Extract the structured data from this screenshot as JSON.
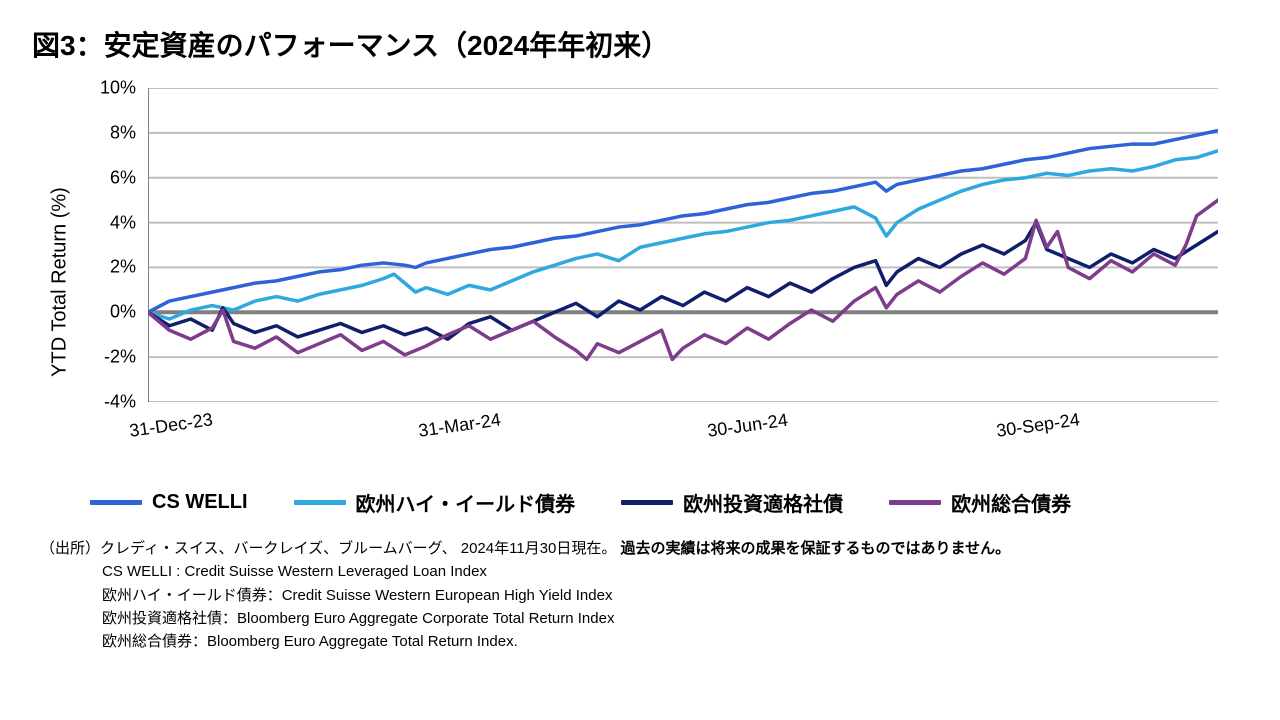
{
  "title": "図3：安定資産のパフォーマンス（2024年年初来）",
  "chart": {
    "type": "line",
    "y_axis_label": "YTD Total Return (%)",
    "ylim": [
      -4,
      10
    ],
    "ytick_step": 2,
    "y_ticks": [
      "10%",
      "8%",
      "6%",
      "4%",
      "2%",
      "0%",
      "-2%",
      "-4%"
    ],
    "y_tick_values": [
      10,
      8,
      6,
      4,
      2,
      0,
      -2,
      -4
    ],
    "x_ticks": [
      "31-Dec-23",
      "31-Mar-24",
      "30-Jun-24",
      "30-Sep-24"
    ],
    "x_positions_pct": [
      0,
      27,
      54,
      81
    ],
    "background_color": "#ffffff",
    "grid_color": "#bfbfbf",
    "axis_color": "#7f7f7f",
    "zero_line_color": "#808080",
    "label_fontsize": 18,
    "axis_label_fontsize": 20,
    "line_width": 3.5,
    "series": [
      {
        "name": "CS WELLI",
        "label": "CS WELLI",
        "color": "#2e62d9",
        "data": [
          [
            0,
            0.0
          ],
          [
            2,
            0.5
          ],
          [
            4,
            0.7
          ],
          [
            6,
            0.9
          ],
          [
            8,
            1.1
          ],
          [
            10,
            1.3
          ],
          [
            12,
            1.4
          ],
          [
            14,
            1.6
          ],
          [
            16,
            1.8
          ],
          [
            18,
            1.9
          ],
          [
            20,
            2.1
          ],
          [
            22,
            2.2
          ],
          [
            24,
            2.1
          ],
          [
            25,
            2.0
          ],
          [
            26,
            2.2
          ],
          [
            28,
            2.4
          ],
          [
            30,
            2.6
          ],
          [
            32,
            2.8
          ],
          [
            34,
            2.9
          ],
          [
            36,
            3.1
          ],
          [
            38,
            3.3
          ],
          [
            40,
            3.4
          ],
          [
            42,
            3.6
          ],
          [
            44,
            3.8
          ],
          [
            46,
            3.9
          ],
          [
            48,
            4.1
          ],
          [
            50,
            4.3
          ],
          [
            52,
            4.4
          ],
          [
            54,
            4.6
          ],
          [
            56,
            4.8
          ],
          [
            58,
            4.9
          ],
          [
            60,
            5.1
          ],
          [
            62,
            5.3
          ],
          [
            64,
            5.4
          ],
          [
            66,
            5.6
          ],
          [
            68,
            5.8
          ],
          [
            69,
            5.4
          ],
          [
            70,
            5.7
          ],
          [
            72,
            5.9
          ],
          [
            74,
            6.1
          ],
          [
            76,
            6.3
          ],
          [
            78,
            6.4
          ],
          [
            80,
            6.6
          ],
          [
            82,
            6.8
          ],
          [
            84,
            6.9
          ],
          [
            86,
            7.1
          ],
          [
            88,
            7.3
          ],
          [
            90,
            7.4
          ],
          [
            92,
            7.5
          ],
          [
            94,
            7.5
          ],
          [
            96,
            7.7
          ],
          [
            98,
            7.9
          ],
          [
            100,
            8.1
          ]
        ]
      },
      {
        "name": "欧州ハイ・イールド債券",
        "label": "欧州ハイ・イールド債券",
        "color": "#2fa8e0",
        "data": [
          [
            0,
            0.0
          ],
          [
            2,
            -0.3
          ],
          [
            4,
            0.1
          ],
          [
            6,
            0.3
          ],
          [
            8,
            0.1
          ],
          [
            10,
            0.5
          ],
          [
            12,
            0.7
          ],
          [
            14,
            0.5
          ],
          [
            16,
            0.8
          ],
          [
            18,
            1.0
          ],
          [
            20,
            1.2
          ],
          [
            22,
            1.5
          ],
          [
            23,
            1.7
          ],
          [
            24,
            1.3
          ],
          [
            25,
            0.9
          ],
          [
            26,
            1.1
          ],
          [
            28,
            0.8
          ],
          [
            30,
            1.2
          ],
          [
            32,
            1.0
          ],
          [
            34,
            1.4
          ],
          [
            36,
            1.8
          ],
          [
            38,
            2.1
          ],
          [
            40,
            2.4
          ],
          [
            42,
            2.6
          ],
          [
            44,
            2.3
          ],
          [
            46,
            2.9
          ],
          [
            48,
            3.1
          ],
          [
            50,
            3.3
          ],
          [
            52,
            3.5
          ],
          [
            54,
            3.6
          ],
          [
            56,
            3.8
          ],
          [
            58,
            4.0
          ],
          [
            60,
            4.1
          ],
          [
            62,
            4.3
          ],
          [
            64,
            4.5
          ],
          [
            66,
            4.7
          ],
          [
            68,
            4.2
          ],
          [
            69,
            3.4
          ],
          [
            70,
            4.0
          ],
          [
            72,
            4.6
          ],
          [
            74,
            5.0
          ],
          [
            76,
            5.4
          ],
          [
            78,
            5.7
          ],
          [
            80,
            5.9
          ],
          [
            82,
            6.0
          ],
          [
            84,
            6.2
          ],
          [
            86,
            6.1
          ],
          [
            88,
            6.3
          ],
          [
            90,
            6.4
          ],
          [
            92,
            6.3
          ],
          [
            94,
            6.5
          ],
          [
            96,
            6.8
          ],
          [
            98,
            6.9
          ],
          [
            100,
            7.2
          ]
        ]
      },
      {
        "name": "欧州投資適格社債",
        "label": "欧州投資適格社債",
        "color": "#0f1f6b",
        "data": [
          [
            0,
            0.0
          ],
          [
            2,
            -0.6
          ],
          [
            4,
            -0.3
          ],
          [
            6,
            -0.8
          ],
          [
            7,
            0.2
          ],
          [
            8,
            -0.5
          ],
          [
            10,
            -0.9
          ],
          [
            12,
            -0.6
          ],
          [
            14,
            -1.1
          ],
          [
            16,
            -0.8
          ],
          [
            18,
            -0.5
          ],
          [
            20,
            -0.9
          ],
          [
            22,
            -0.6
          ],
          [
            24,
            -1.0
          ],
          [
            26,
            -0.7
          ],
          [
            28,
            -1.2
          ],
          [
            30,
            -0.5
          ],
          [
            32,
            -0.2
          ],
          [
            34,
            -0.8
          ],
          [
            36,
            -0.4
          ],
          [
            38,
            0.0
          ],
          [
            40,
            0.4
          ],
          [
            42,
            -0.2
          ],
          [
            44,
            0.5
          ],
          [
            46,
            0.1
          ],
          [
            48,
            0.7
          ],
          [
            50,
            0.3
          ],
          [
            52,
            0.9
          ],
          [
            54,
            0.5
          ],
          [
            56,
            1.1
          ],
          [
            58,
            0.7
          ],
          [
            60,
            1.3
          ],
          [
            62,
            0.9
          ],
          [
            64,
            1.5
          ],
          [
            66,
            2.0
          ],
          [
            68,
            2.3
          ],
          [
            69,
            1.2
          ],
          [
            70,
            1.8
          ],
          [
            72,
            2.4
          ],
          [
            74,
            2.0
          ],
          [
            76,
            2.6
          ],
          [
            78,
            3.0
          ],
          [
            80,
            2.6
          ],
          [
            82,
            3.2
          ],
          [
            83,
            4.0
          ],
          [
            84,
            2.8
          ],
          [
            86,
            2.4
          ],
          [
            88,
            2.0
          ],
          [
            90,
            2.6
          ],
          [
            92,
            2.2
          ],
          [
            94,
            2.8
          ],
          [
            96,
            2.4
          ],
          [
            98,
            3.0
          ],
          [
            100,
            3.6
          ]
        ]
      },
      {
        "name": "欧州総合債券",
        "label": "欧州総合債券",
        "color": "#7d3c8c",
        "data": [
          [
            0,
            0.0
          ],
          [
            2,
            -0.8
          ],
          [
            4,
            -1.2
          ],
          [
            6,
            -0.7
          ],
          [
            7,
            0.1
          ],
          [
            8,
            -1.3
          ],
          [
            10,
            -1.6
          ],
          [
            12,
            -1.1
          ],
          [
            14,
            -1.8
          ],
          [
            16,
            -1.4
          ],
          [
            18,
            -1.0
          ],
          [
            20,
            -1.7
          ],
          [
            22,
            -1.3
          ],
          [
            24,
            -1.9
          ],
          [
            26,
            -1.5
          ],
          [
            28,
            -1.0
          ],
          [
            30,
            -0.6
          ],
          [
            32,
            -1.2
          ],
          [
            34,
            -0.8
          ],
          [
            36,
            -0.4
          ],
          [
            38,
            -1.1
          ],
          [
            40,
            -1.7
          ],
          [
            41,
            -2.1
          ],
          [
            42,
            -1.4
          ],
          [
            44,
            -1.8
          ],
          [
            46,
            -1.3
          ],
          [
            48,
            -0.8
          ],
          [
            49,
            -2.1
          ],
          [
            50,
            -1.6
          ],
          [
            52,
            -1.0
          ],
          [
            54,
            -1.4
          ],
          [
            56,
            -0.7
          ],
          [
            58,
            -1.2
          ],
          [
            60,
            -0.5
          ],
          [
            62,
            0.1
          ],
          [
            64,
            -0.4
          ],
          [
            66,
            0.5
          ],
          [
            68,
            1.1
          ],
          [
            69,
            0.2
          ],
          [
            70,
            0.8
          ],
          [
            72,
            1.4
          ],
          [
            74,
            0.9
          ],
          [
            76,
            1.6
          ],
          [
            78,
            2.2
          ],
          [
            80,
            1.7
          ],
          [
            82,
            2.4
          ],
          [
            83,
            4.1
          ],
          [
            84,
            2.9
          ],
          [
            85,
            3.6
          ],
          [
            86,
            2.0
          ],
          [
            88,
            1.5
          ],
          [
            90,
            2.3
          ],
          [
            92,
            1.8
          ],
          [
            94,
            2.6
          ],
          [
            96,
            2.1
          ],
          [
            97,
            3.0
          ],
          [
            98,
            4.3
          ],
          [
            100,
            5.0
          ]
        ]
      }
    ]
  },
  "legend": [
    {
      "label": "CS WELLI",
      "color": "#2e62d9"
    },
    {
      "label": "欧州ハイ・イールド債券",
      "color": "#2fa8e0"
    },
    {
      "label": "欧州投資適格社債",
      "color": "#0f1f6b"
    },
    {
      "label": "欧州総合債券",
      "color": "#7d3c8c"
    }
  ],
  "footnotes": {
    "source_label": "（出所）",
    "source_text": "クレディ・スイス、バークレイズ、ブルームバーグ、 2024年11月30日現在。",
    "disclaimer": "過去の実績は将来の成果を保証するものではありません。",
    "lines": [
      "CS WELLI : Credit Suisse Western Leveraged Loan Index",
      "欧州ハイ・イールド債券：Credit Suisse Western European High Yield Index",
      "欧州投資適格社債：Bloomberg Euro Aggregate Corporate Total Return Index",
      "欧州総合債券：Bloomberg Euro Aggregate Total Return Index."
    ]
  }
}
